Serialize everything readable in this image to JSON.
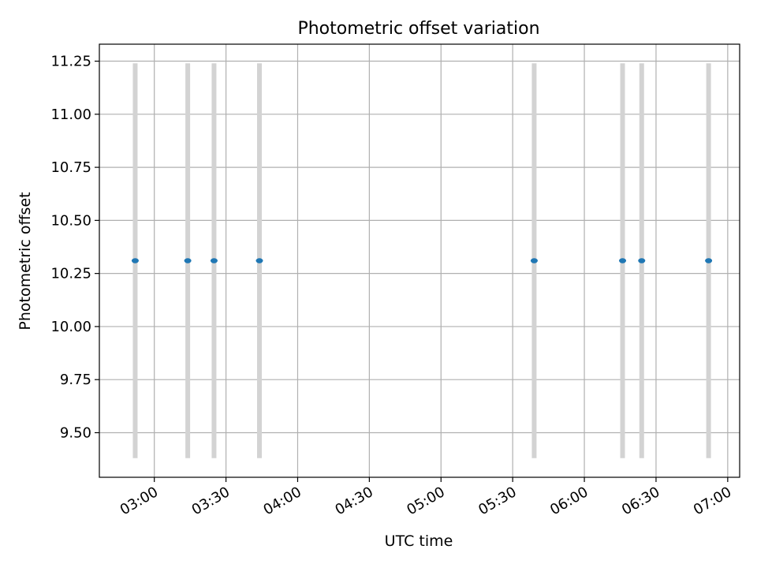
{
  "chart_data": {
    "type": "scatter",
    "title": "Photometric offset variation",
    "xlabel": "UTC time",
    "ylabel": "Photometric offset",
    "xlim": [
      "02:37",
      "07:05"
    ],
    "ylim": [
      9.29,
      11.33
    ],
    "x_ticks": [
      "03:00",
      "03:30",
      "04:00",
      "04:30",
      "05:00",
      "05:30",
      "06:00",
      "06:30",
      "07:00"
    ],
    "y_ticks": [
      "9.50",
      "9.75",
      "10.00",
      "10.25",
      "10.50",
      "10.75",
      "11.00",
      "11.25"
    ],
    "grid": true,
    "colors": {
      "marker": "#1f77b4",
      "errorbar": "#d3d3d3",
      "grid": "#b0b0b0"
    },
    "points": [
      {
        "x": "02:52",
        "y": 10.31,
        "yerr_low": 9.38,
        "yerr_high": 11.24
      },
      {
        "x": "03:14",
        "y": 10.31,
        "yerr_low": 9.38,
        "yerr_high": 11.24
      },
      {
        "x": "03:25",
        "y": 10.31,
        "yerr_low": 9.38,
        "yerr_high": 11.24
      },
      {
        "x": "03:44",
        "y": 10.31,
        "yerr_low": 9.38,
        "yerr_high": 11.24
      },
      {
        "x": "05:39",
        "y": 10.31,
        "yerr_low": 9.38,
        "yerr_high": 11.24
      },
      {
        "x": "06:16",
        "y": 10.31,
        "yerr_low": 9.38,
        "yerr_high": 11.24
      },
      {
        "x": "06:24",
        "y": 10.31,
        "yerr_low": 9.38,
        "yerr_high": 11.24
      },
      {
        "x": "06:52",
        "y": 10.31,
        "yerr_low": 9.38,
        "yerr_high": 11.24
      }
    ]
  }
}
